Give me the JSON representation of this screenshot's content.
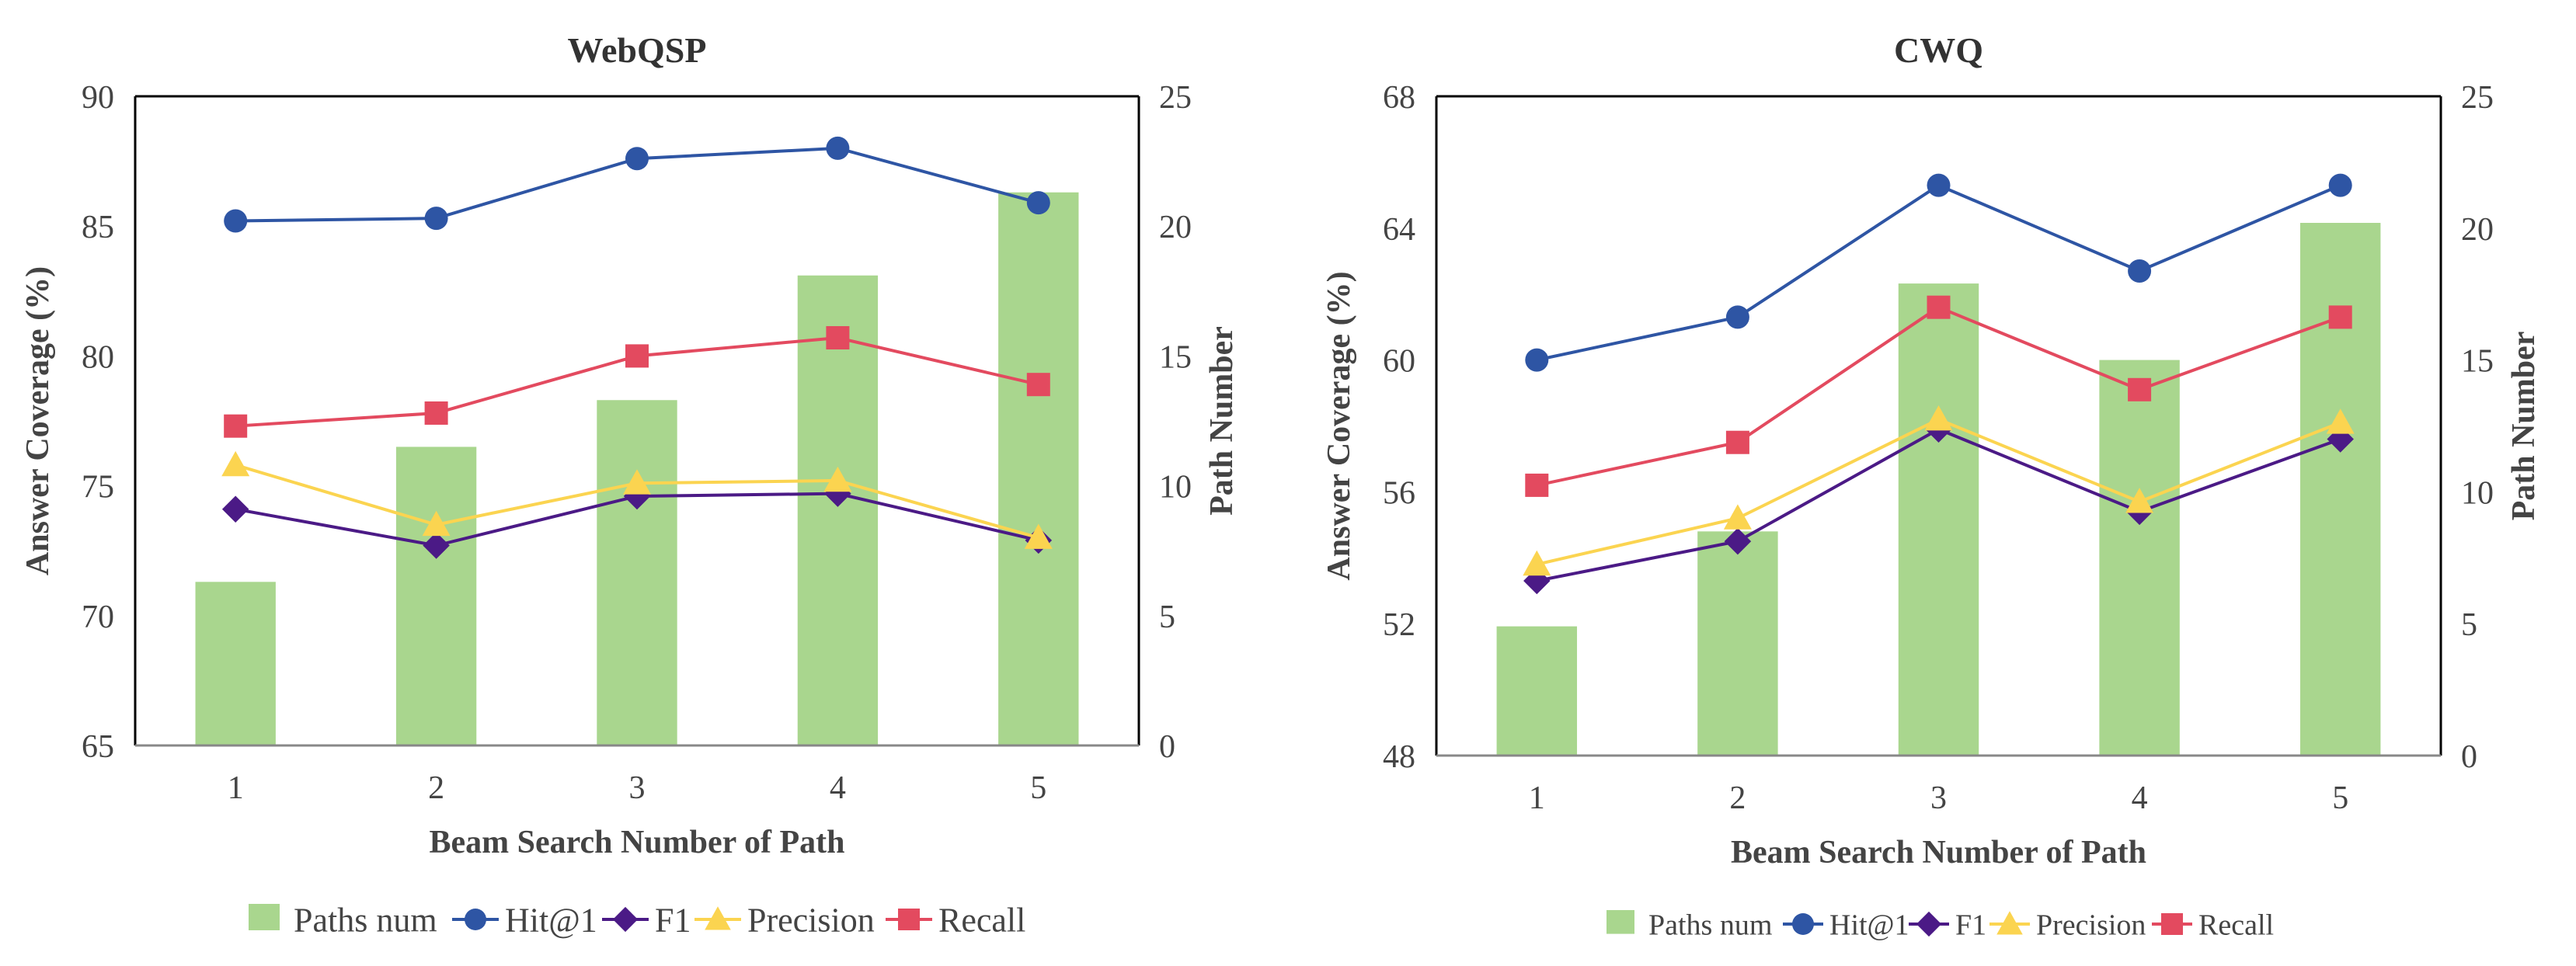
{
  "colors": {
    "paths": "#a9d68e",
    "hit": "#2e55a4",
    "f1": "#4b1a86",
    "precision": "#fbd450",
    "recall": "#e34a5f",
    "axis": "#000000",
    "axis_bottom": "#888888",
    "text": "#444444",
    "title": "#333333"
  },
  "legend_labels": {
    "paths": "Paths num",
    "hit": "Hit@1",
    "f1": "F1",
    "precision": "Precision",
    "recall": "Recall"
  },
  "chart_data": [
    {
      "type": "bar+line",
      "title": "WebQSP",
      "xlabel": "Beam Search Number of Path",
      "ylabel": "Answer Coverage (%)",
      "y2label": "Path  Number",
      "categories": [
        "1",
        "2",
        "3",
        "4",
        "5"
      ],
      "ylim": [
        65,
        90
      ],
      "yticks": [
        65,
        70,
        75,
        80,
        85,
        90
      ],
      "y2lim": [
        0,
        25
      ],
      "y2ticks": [
        0,
        5,
        10,
        15,
        20,
        25
      ],
      "bars": {
        "name": "Paths num",
        "axis": "right",
        "values": [
          6.3,
          11.5,
          13.3,
          18.1,
          21.3
        ]
      },
      "series": [
        {
          "name": "Hit@1",
          "key": "hit",
          "marker": "circle",
          "values": [
            85.2,
            85.3,
            87.6,
            88.0,
            85.9
          ]
        },
        {
          "name": "F1",
          "key": "f1",
          "marker": "diamond",
          "values": [
            74.1,
            72.7,
            74.6,
            74.7,
            72.9
          ]
        },
        {
          "name": "Precision",
          "key": "precision",
          "marker": "triangle",
          "values": [
            75.8,
            73.5,
            75.1,
            75.2,
            73.0
          ]
        },
        {
          "name": "Recall",
          "key": "recall",
          "marker": "square",
          "values": [
            77.3,
            77.8,
            80.0,
            80.7,
            78.9
          ]
        }
      ]
    },
    {
      "type": "bar+line",
      "title": "CWQ",
      "xlabel": "Beam Search Number of Path",
      "ylabel": "Answer Coverage (%)",
      "y2label": "Path  Number",
      "categories": [
        "1",
        "2",
        "3",
        "4",
        "5"
      ],
      "ylim": [
        48,
        68
      ],
      "yticks": [
        48,
        52,
        56,
        60,
        64,
        68
      ],
      "y2lim": [
        0,
        25
      ],
      "y2ticks": [
        0,
        5,
        10,
        15,
        20,
        25
      ],
      "bars": {
        "name": "Paths num",
        "axis": "right",
        "values": [
          4.9,
          8.5,
          17.9,
          15.0,
          20.2
        ]
      },
      "series": [
        {
          "name": "Hit@1",
          "key": "hit",
          "marker": "circle",
          "values": [
            60.0,
            61.3,
            65.3,
            62.7,
            65.3
          ]
        },
        {
          "name": "F1",
          "key": "f1",
          "marker": "diamond",
          "values": [
            53.3,
            54.5,
            57.9,
            55.4,
            57.6
          ]
        },
        {
          "name": "Precision",
          "key": "precision",
          "marker": "triangle",
          "values": [
            53.8,
            55.2,
            58.2,
            55.7,
            58.1
          ]
        },
        {
          "name": "Recall",
          "key": "recall",
          "marker": "square",
          "values": [
            56.2,
            57.5,
            61.6,
            59.1,
            61.3
          ]
        }
      ]
    }
  ]
}
